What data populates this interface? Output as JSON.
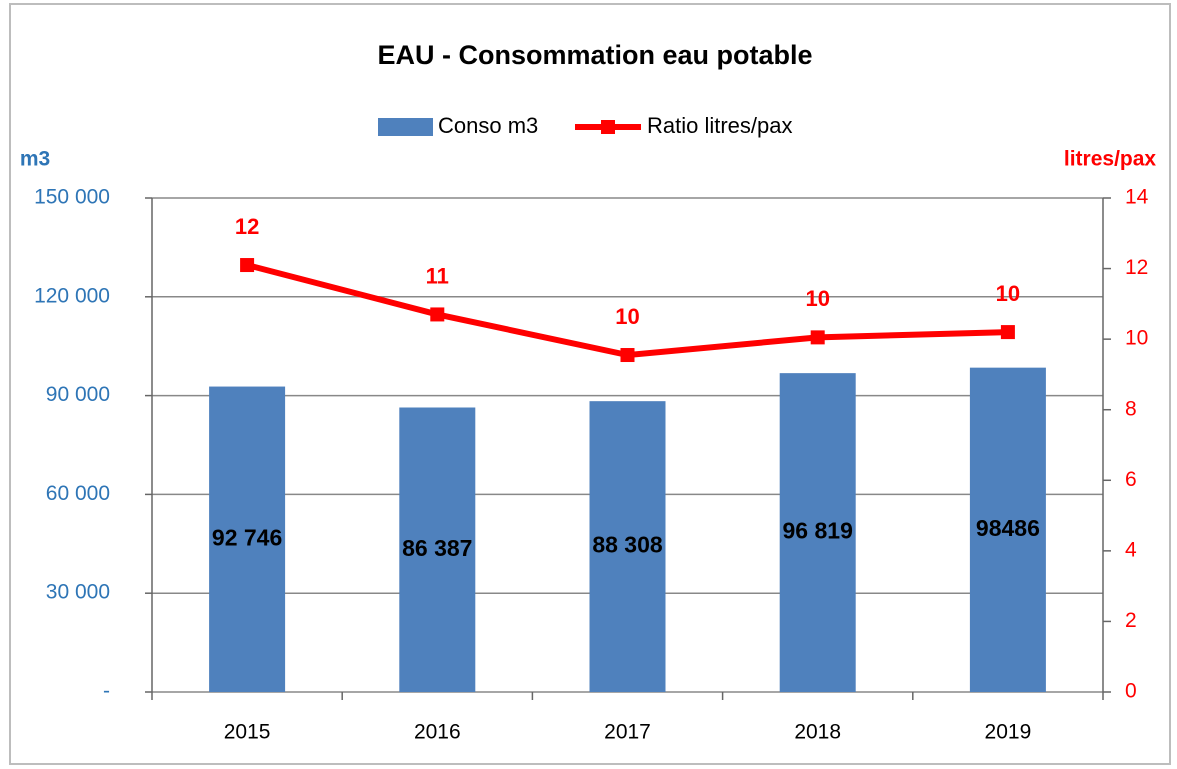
{
  "chart_data": {
    "type": "bar-line",
    "title": "EAU - Consommation eau potable",
    "categories": [
      "2015",
      "2016",
      "2017",
      "2018",
      "2019"
    ],
    "series": [
      {
        "name": "Conso m3",
        "type": "bar",
        "color": "#4f81bd",
        "values": [
          92746,
          86387,
          88308,
          96819,
          98486
        ],
        "value_labels": [
          "92 746",
          "86 387",
          "88 308",
          "96 819",
          "98486"
        ]
      },
      {
        "name": "Ratio litres/pax",
        "type": "line",
        "axis": "y2",
        "color": "#ff0000",
        "values": [
          12.1,
          10.7,
          9.55,
          10.05,
          10.2
        ],
        "value_labels": [
          "12",
          "11",
          "10",
          "10",
          "10"
        ]
      }
    ],
    "ylabel": "m3",
    "y2label": "litres/pax",
    "ylim": [
      0,
      150000
    ],
    "yticks": [
      {
        "value": 0,
        "label": "-"
      },
      {
        "value": 30000,
        "label": "30 000"
      },
      {
        "value": 60000,
        "label": "60 000"
      },
      {
        "value": 90000,
        "label": "90 000"
      },
      {
        "value": 120000,
        "label": "120 000"
      },
      {
        "value": 150000,
        "label": "150 000"
      }
    ],
    "y2lim": [
      0,
      14
    ],
    "y2ticks": [
      0,
      2,
      4,
      6,
      8,
      10,
      12,
      14
    ],
    "grid": true,
    "legend": "top"
  }
}
